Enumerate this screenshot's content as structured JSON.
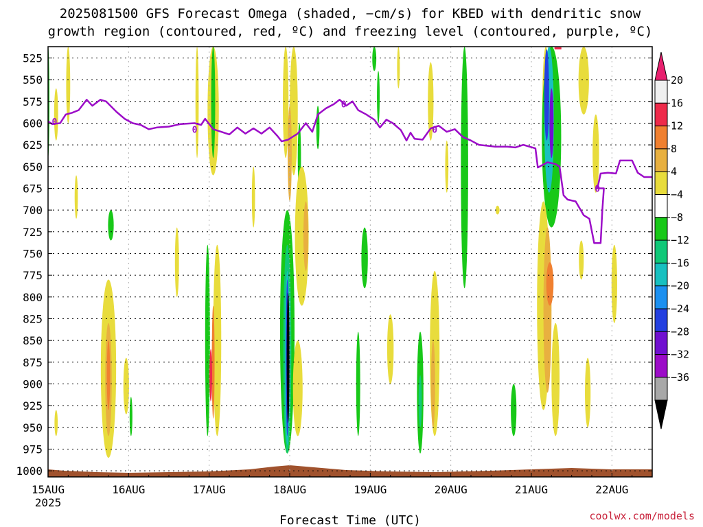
{
  "chart_data": {
    "type": "heatmap",
    "title_lines": [
      "2025081500 GFS Forecast Omega (shaded, −cm/s) for KBED with dendritic snow",
      "growth region (contoured, red, ºC) and freezing level (contoured, purple, ºC)"
    ],
    "xlabel": "Forecast Time (UTC)",
    "ylabel": "",
    "x_ticks": [
      "15AUG",
      "16AUG",
      "17AUG",
      "18AUG",
      "19AUG",
      "20AUG",
      "21AUG",
      "22AUG"
    ],
    "x_year_label": "2025",
    "x_range_days": [
      0,
      7.5
    ],
    "y_ticks": [
      525,
      550,
      575,
      600,
      625,
      650,
      675,
      700,
      725,
      750,
      775,
      800,
      825,
      850,
      875,
      900,
      925,
      950,
      975,
      1000
    ],
    "y_range_hpa": [
      512,
      1007
    ],
    "y_scale": "pressure (linear, inverted)",
    "grid": true,
    "colorbar": {
      "labels": [
        "20",
        "16",
        "12",
        "8",
        "4",
        "−4",
        "−8",
        "−12",
        "−16",
        "−20",
        "−24",
        "−28",
        "−32",
        "−36"
      ],
      "colors": [
        "#f0f0f0",
        "#ee2a4a",
        "#f08030",
        "#e8b040",
        "#e8dc3c",
        "#ffffff",
        "#18c818",
        "#10c878",
        "#18c0c0",
        "#1c90f0",
        "#2440e0",
        "#7010d0",
        "#9c0cc8",
        "#a8a8a8"
      ],
      "top_arrow_color": "#e8206e",
      "bottom_arrow_color": "#000000"
    },
    "freezing_level": {
      "label": "0",
      "color": "#9c0cc8",
      "points": [
        [
          0.0,
          598
        ],
        [
          0.05,
          601
        ],
        [
          0.15,
          600
        ],
        [
          0.22,
          590
        ],
        [
          0.3,
          588
        ],
        [
          0.38,
          585
        ],
        [
          0.48,
          573
        ],
        [
          0.55,
          580
        ],
        [
          0.65,
          573
        ],
        [
          0.72,
          575
        ],
        [
          0.85,
          587
        ],
        [
          0.95,
          595
        ],
        [
          1.05,
          600
        ],
        [
          1.15,
          602
        ],
        [
          1.25,
          607
        ],
        [
          1.35,
          605
        ],
        [
          1.5,
          604
        ],
        [
          1.65,
          601
        ],
        [
          1.82,
          600
        ],
        [
          1.9,
          602
        ],
        [
          1.95,
          595
        ],
        [
          2.05,
          607
        ],
        [
          2.15,
          610
        ],
        [
          2.25,
          613
        ],
        [
          2.35,
          605
        ],
        [
          2.45,
          612
        ],
        [
          2.55,
          606
        ],
        [
          2.65,
          612
        ],
        [
          2.75,
          605
        ],
        [
          2.85,
          615
        ],
        [
          2.9,
          621
        ],
        [
          2.98,
          619
        ],
        [
          3.1,
          612
        ],
        [
          3.2,
          600
        ],
        [
          3.28,
          610
        ],
        [
          3.35,
          590
        ],
        [
          3.45,
          583
        ],
        [
          3.55,
          578
        ],
        [
          3.62,
          573
        ],
        [
          3.7,
          580
        ],
        [
          3.78,
          575
        ],
        [
          3.85,
          585
        ],
        [
          3.95,
          590
        ],
        [
          4.05,
          596
        ],
        [
          4.12,
          605
        ],
        [
          4.2,
          596
        ],
        [
          4.28,
          600
        ],
        [
          4.38,
          608
        ],
        [
          4.45,
          620
        ],
        [
          4.5,
          611
        ],
        [
          4.55,
          618
        ],
        [
          4.65,
          619
        ],
        [
          4.75,
          606
        ],
        [
          4.85,
          603
        ],
        [
          4.95,
          610
        ],
        [
          5.05,
          607
        ],
        [
          5.15,
          616
        ],
        [
          5.25,
          620
        ],
        [
          5.35,
          625
        ],
        [
          5.45,
          626
        ],
        [
          5.55,
          627
        ],
        [
          5.7,
          627
        ],
        [
          5.8,
          628
        ],
        [
          5.9,
          625
        ],
        [
          6.05,
          629
        ],
        [
          6.08,
          651
        ],
        [
          6.2,
          645
        ],
        [
          6.3,
          647
        ],
        [
          6.35,
          650
        ],
        [
          6.4,
          683
        ],
        [
          6.45,
          688
        ],
        [
          6.55,
          690
        ],
        [
          6.65,
          706
        ],
        [
          6.72,
          710
        ],
        [
          6.78,
          738
        ],
        [
          6.86,
          738
        ],
        [
          6.88,
          701
        ],
        [
          6.9,
          675
        ],
        [
          6.82,
          675
        ],
        [
          6.86,
          658
        ],
        [
          6.95,
          657
        ],
        [
          7.05,
          658
        ],
        [
          7.1,
          643
        ],
        [
          7.25,
          643
        ],
        [
          7.32,
          657
        ],
        [
          7.4,
          662
        ],
        [
          7.5,
          662
        ]
      ]
    },
    "omega_regions": [
      {
        "x": 0.0,
        "p1": 512,
        "p2": 640,
        "w": 0.03,
        "value": -8
      },
      {
        "x": 0.25,
        "p1": 512,
        "p2": 600,
        "w": 0.05,
        "value": 4
      },
      {
        "x": 0.1,
        "p1": 560,
        "p2": 620,
        "w": 0.05,
        "value": 4
      },
      {
        "x": 0.35,
        "p1": 660,
        "p2": 710,
        "w": 0.04,
        "value": 4
      },
      {
        "x": 0.1,
        "p1": 930,
        "p2": 960,
        "w": 0.04,
        "value": 4
      },
      {
        "x": 0.78,
        "p1": 700,
        "p2": 735,
        "w": 0.07,
        "value": -8
      },
      {
        "x": 0.75,
        "p1": 780,
        "p2": 985,
        "w": 0.19,
        "value": 4
      },
      {
        "x": 0.75,
        "p1": 830,
        "p2": 960,
        "w": 0.08,
        "value": 8
      },
      {
        "x": 0.75,
        "p1": 850,
        "p2": 930,
        "w": 0.04,
        "value": 12
      },
      {
        "x": 0.97,
        "p1": 870,
        "p2": 935,
        "w": 0.07,
        "value": 4
      },
      {
        "x": 1.03,
        "p1": 915,
        "p2": 960,
        "w": 0.03,
        "value": -8
      },
      {
        "x": 1.85,
        "p1": 512,
        "p2": 640,
        "w": 0.04,
        "value": 4
      },
      {
        "x": 2.05,
        "p1": 512,
        "p2": 660,
        "w": 0.14,
        "value": 4
      },
      {
        "x": 2.05,
        "p1": 512,
        "p2": 640,
        "w": 0.05,
        "value": -8
      },
      {
        "x": 1.6,
        "p1": 720,
        "p2": 800,
        "w": 0.05,
        "value": 4
      },
      {
        "x": 1.98,
        "p1": 740,
        "p2": 960,
        "w": 0.06,
        "value": -8
      },
      {
        "x": 2.1,
        "p1": 740,
        "p2": 960,
        "w": 0.1,
        "value": 4
      },
      {
        "x": 2.05,
        "p1": 810,
        "p2": 940,
        "w": 0.03,
        "value": 12
      },
      {
        "x": 2.02,
        "p1": 860,
        "p2": 920,
        "w": 0.03,
        "value": 16
      },
      {
        "x": 2.55,
        "p1": 650,
        "p2": 720,
        "w": 0.04,
        "value": 4
      },
      {
        "x": 2.95,
        "p1": 512,
        "p2": 640,
        "w": 0.07,
        "value": 4
      },
      {
        "x": 3.05,
        "p1": 512,
        "p2": 660,
        "w": 0.1,
        "value": 4
      },
      {
        "x": 3.0,
        "p1": 580,
        "p2": 690,
        "w": 0.05,
        "value": 8
      },
      {
        "x": 3.12,
        "p1": 600,
        "p2": 680,
        "w": 0.04,
        "value": -8
      },
      {
        "x": 3.15,
        "p1": 650,
        "p2": 810,
        "w": 0.17,
        "value": 4
      },
      {
        "x": 3.2,
        "p1": 690,
        "p2": 770,
        "w": 0.06,
        "value": 8
      },
      {
        "x": 2.97,
        "p1": 700,
        "p2": 980,
        "w": 0.18,
        "value": -8
      },
      {
        "x": 2.97,
        "p1": 740,
        "p2": 980,
        "w": 0.1,
        "value": -12
      },
      {
        "x": 2.97,
        "p1": 770,
        "p2": 970,
        "w": 0.06,
        "value": -16
      },
      {
        "x": 2.97,
        "p1": 780,
        "p2": 960,
        "w": 0.03,
        "value": -24
      },
      {
        "x": 2.98,
        "p1": 795,
        "p2": 945,
        "w": 0.015,
        "value": -36
      },
      {
        "x": 3.35,
        "p1": 580,
        "p2": 630,
        "w": 0.04,
        "value": -8
      },
      {
        "x": 3.1,
        "p1": 850,
        "p2": 960,
        "w": 0.12,
        "value": 4
      },
      {
        "x": 3.93,
        "p1": 720,
        "p2": 790,
        "w": 0.08,
        "value": -8
      },
      {
        "x": 3.85,
        "p1": 840,
        "p2": 960,
        "w": 0.05,
        "value": -8
      },
      {
        "x": 4.05,
        "p1": 512,
        "p2": 540,
        "w": 0.05,
        "value": -8
      },
      {
        "x": 4.35,
        "p1": 512,
        "p2": 560,
        "w": 0.03,
        "value": 4
      },
      {
        "x": 4.1,
        "p1": 540,
        "p2": 600,
        "w": 0.03,
        "value": -8
      },
      {
        "x": 4.25,
        "p1": 820,
        "p2": 900,
        "w": 0.08,
        "value": 4
      },
      {
        "x": 4.75,
        "p1": 530,
        "p2": 620,
        "w": 0.07,
        "value": 4
      },
      {
        "x": 4.8,
        "p1": 770,
        "p2": 960,
        "w": 0.12,
        "value": 4
      },
      {
        "x": 4.78,
        "p1": 850,
        "p2": 950,
        "w": 0.05,
        "value": 8
      },
      {
        "x": 4.62,
        "p1": 840,
        "p2": 980,
        "w": 0.08,
        "value": -8
      },
      {
        "x": 4.62,
        "p1": 890,
        "p2": 950,
        "w": 0.04,
        "value": -12
      },
      {
        "x": 4.95,
        "p1": 620,
        "p2": 680,
        "w": 0.04,
        "value": 4
      },
      {
        "x": 5.17,
        "p1": 512,
        "p2": 790,
        "w": 0.09,
        "value": -8
      },
      {
        "x": 5.58,
        "p1": 695,
        "p2": 705,
        "w": 0.05,
        "value": 4
      },
      {
        "x": 5.78,
        "p1": 900,
        "p2": 960,
        "w": 0.07,
        "value": -8
      },
      {
        "x": 6.18,
        "p1": 512,
        "p2": 660,
        "w": 0.09,
        "value": 4
      },
      {
        "x": 6.25,
        "p1": 512,
        "p2": 720,
        "w": 0.24,
        "value": -8
      },
      {
        "x": 6.22,
        "p1": 512,
        "p2": 680,
        "w": 0.12,
        "value": -16
      },
      {
        "x": 6.19,
        "p1": 515,
        "p2": 620,
        "w": 0.06,
        "value": -24
      },
      {
        "x": 6.25,
        "p1": 560,
        "p2": 640,
        "w": 0.05,
        "value": -28
      },
      {
        "x": 6.15,
        "p1": 690,
        "p2": 930,
        "w": 0.16,
        "value": 4
      },
      {
        "x": 6.2,
        "p1": 720,
        "p2": 910,
        "w": 0.1,
        "value": 8
      },
      {
        "x": 6.23,
        "p1": 760,
        "p2": 810,
        "w": 0.09,
        "value": 12
      },
      {
        "x": 6.3,
        "p1": 830,
        "p2": 960,
        "w": 0.1,
        "value": 4
      },
      {
        "x": 6.65,
        "p1": 512,
        "p2": 590,
        "w": 0.13,
        "value": 4
      },
      {
        "x": 6.8,
        "p1": 590,
        "p2": 680,
        "w": 0.08,
        "value": 4
      },
      {
        "x": 6.62,
        "p1": 735,
        "p2": 780,
        "w": 0.06,
        "value": 4
      },
      {
        "x": 7.03,
        "p1": 740,
        "p2": 830,
        "w": 0.07,
        "value": 4
      },
      {
        "x": 6.7,
        "p1": 870,
        "p2": 950,
        "w": 0.07,
        "value": 4
      }
    ],
    "dgz_contour": {
      "label": "red",
      "x": 6.33,
      "p": 512
    },
    "terrain_label": "ground",
    "terrain_color": "#a0522d",
    "credit": "coolwx.com/models"
  }
}
